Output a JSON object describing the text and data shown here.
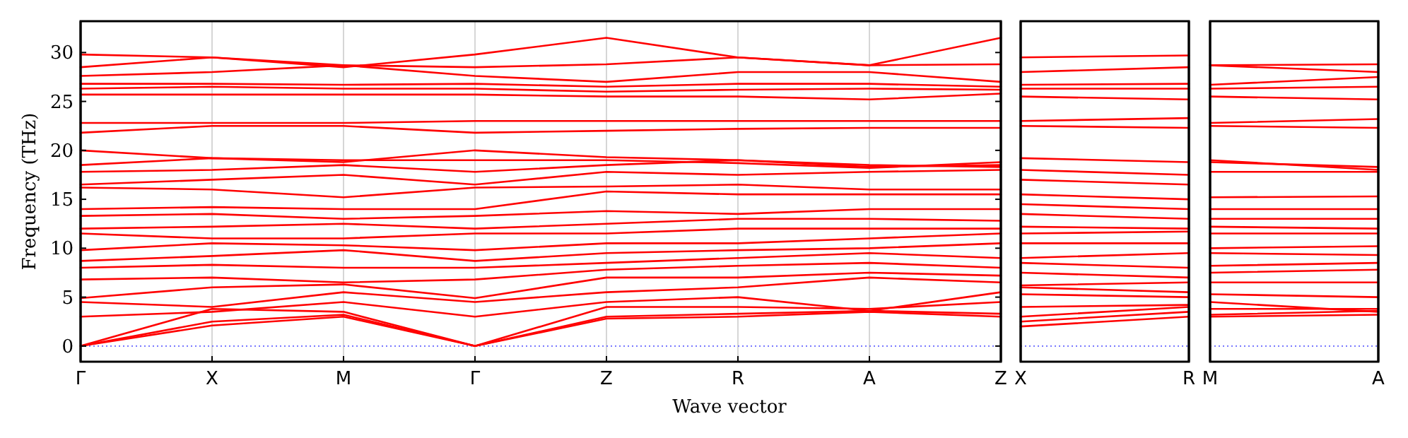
{
  "chart_data": [
    {
      "type": "line",
      "ylabel": "Frequency (THz)",
      "xlabel": "Wave vector",
      "categories": [
        "Γ",
        "X",
        "M",
        "Γ",
        "Z",
        "R",
        "A",
        "Z"
      ],
      "ylim": [
        -1.6,
        33.2
      ],
      "yticks": [
        0,
        5,
        10,
        15,
        20,
        25,
        30
      ],
      "grid": "x",
      "marker": "none",
      "line_style": "solid",
      "ref_lines": [
        {
          "axis": "y",
          "value": 0,
          "color": "#6666ff",
          "line_style": "dotted"
        }
      ],
      "series": [
        {
          "color": "#ff0000",
          "values": [
            0,
            2.1,
            3.0,
            0,
            2.8,
            3.0,
            3.5,
            3.0
          ]
        },
        {
          "color": "#ff0000",
          "values": [
            0,
            2.5,
            3.2,
            0,
            3.0,
            3.3,
            3.6,
            3.3
          ]
        },
        {
          "color": "#ff0000",
          "values": [
            0,
            3.8,
            3.5,
            0,
            4.0,
            4.0,
            3.8,
            4.5
          ]
        },
        {
          "color": "#ff0000",
          "values": [
            3.0,
            3.5,
            4.5,
            3.0,
            4.5,
            5.0,
            3.6,
            5.5
          ]
        },
        {
          "color": "#ff0000",
          "values": [
            4.5,
            4.0,
            5.5,
            4.5,
            5.5,
            6.0,
            7.0,
            6.5
          ]
        },
        {
          "color": "#ff0000",
          "values": [
            4.9,
            6.0,
            6.3,
            4.9,
            7.0,
            7.0,
            7.5,
            7.2
          ]
        },
        {
          "color": "#ff0000",
          "values": [
            6.8,
            7.0,
            6.5,
            6.8,
            7.8,
            8.2,
            8.5,
            8.0
          ]
        },
        {
          "color": "#ff0000",
          "values": [
            8.0,
            8.3,
            8.0,
            8.0,
            8.5,
            9.0,
            9.5,
            9.0
          ]
        },
        {
          "color": "#ff0000",
          "values": [
            8.7,
            9.2,
            9.8,
            8.7,
            9.5,
            9.8,
            10.0,
            10.5
          ]
        },
        {
          "color": "#ff0000",
          "values": [
            9.8,
            10.5,
            10.3,
            9.8,
            10.5,
            10.5,
            11.0,
            11.5
          ]
        },
        {
          "color": "#ff0000",
          "values": [
            11.5,
            11.0,
            11.0,
            11.5,
            11.5,
            12.0,
            12.0,
            12.0
          ]
        },
        {
          "color": "#ff0000",
          "values": [
            12.0,
            12.2,
            12.5,
            12.0,
            12.5,
            13.0,
            13.0,
            12.8
          ]
        },
        {
          "color": "#ff0000",
          "values": [
            13.3,
            13.5,
            13.0,
            13.3,
            13.8,
            13.5,
            14.0,
            14.0
          ]
        },
        {
          "color": "#ff0000",
          "values": [
            14.0,
            14.2,
            14.0,
            14.0,
            15.8,
            15.5,
            15.5,
            15.5
          ]
        },
        {
          "color": "#ff0000",
          "values": [
            16.2,
            16.0,
            15.2,
            16.2,
            16.3,
            16.5,
            16.0,
            16.0
          ]
        },
        {
          "color": "#ff0000",
          "values": [
            16.5,
            17.0,
            17.5,
            16.5,
            17.8,
            17.5,
            17.8,
            18.0
          ]
        },
        {
          "color": "#ff0000",
          "values": [
            17.8,
            18.0,
            18.5,
            17.8,
            18.5,
            19.0,
            18.3,
            18.5
          ]
        },
        {
          "color": "#ff0000",
          "values": [
            18.5,
            19.2,
            19.0,
            19.0,
            19.0,
            18.7,
            18.2,
            18.8
          ]
        },
        {
          "color": "#ff0000",
          "values": [
            20.0,
            19.2,
            18.8,
            20.0,
            19.3,
            19.0,
            18.5,
            18.3
          ]
        },
        {
          "color": "#ff0000",
          "values": [
            21.8,
            22.5,
            22.5,
            21.8,
            22.0,
            22.2,
            22.3,
            22.3
          ]
        },
        {
          "color": "#ff0000",
          "values": [
            22.8,
            22.8,
            22.8,
            23.0,
            23.0,
            23.0,
            23.0,
            23.0
          ]
        },
        {
          "color": "#ff0000",
          "values": [
            25.7,
            25.7,
            25.7,
            25.7,
            25.5,
            25.5,
            25.2,
            25.8
          ]
        },
        {
          "color": "#ff0000",
          "values": [
            26.3,
            26.5,
            26.3,
            26.3,
            26.0,
            26.2,
            26.3,
            26.2
          ]
        },
        {
          "color": "#ff0000",
          "values": [
            26.8,
            26.8,
            26.7,
            26.8,
            26.5,
            26.8,
            26.8,
            26.5
          ]
        },
        {
          "color": "#ff0000",
          "values": [
            27.6,
            28.0,
            28.7,
            27.6,
            27.0,
            28.0,
            28.0,
            27.0
          ]
        },
        {
          "color": "#ff0000",
          "values": [
            28.5,
            29.5,
            28.7,
            28.5,
            28.8,
            29.5,
            28.7,
            28.8
          ]
        },
        {
          "color": "#ff0000",
          "values": [
            29.8,
            29.5,
            28.5,
            29.8,
            31.5,
            29.5,
            28.7,
            31.5
          ]
        }
      ]
    },
    {
      "type": "line",
      "categories": [
        "X",
        "R"
      ],
      "ylim": [
        -1.6,
        33.2
      ],
      "tick_labels": "x",
      "marker": "none",
      "line_style": "solid",
      "ref_lines": [
        {
          "axis": "y",
          "value": 0,
          "color": "#6666ff",
          "line_style": "dotted"
        }
      ],
      "series": [
        {
          "color": "#ff0000",
          "values": [
            2.0,
            3.0
          ]
        },
        {
          "color": "#ff0000",
          "values": [
            2.5,
            3.5
          ]
        },
        {
          "color": "#ff0000",
          "values": [
            3.0,
            4.0
          ]
        },
        {
          "color": "#ff0000",
          "values": [
            4.0,
            4.2
          ]
        },
        {
          "color": "#ff0000",
          "values": [
            5.3,
            5.0
          ]
        },
        {
          "color": "#ff0000",
          "values": [
            6.0,
            5.5
          ]
        },
        {
          "color": "#ff0000",
          "values": [
            6.2,
            6.5
          ]
        },
        {
          "color": "#ff0000",
          "values": [
            7.5,
            7.0
          ]
        },
        {
          "color": "#ff0000",
          "values": [
            8.5,
            8.0
          ]
        },
        {
          "color": "#ff0000",
          "values": [
            9.0,
            9.5
          ]
        },
        {
          "color": "#ff0000",
          "values": [
            10.5,
            10.5
          ]
        },
        {
          "color": "#ff0000",
          "values": [
            11.5,
            11.7
          ]
        },
        {
          "color": "#ff0000",
          "values": [
            12.2,
            12.0
          ]
        },
        {
          "color": "#ff0000",
          "values": [
            13.5,
            13.0
          ]
        },
        {
          "color": "#ff0000",
          "values": [
            14.5,
            14.0
          ]
        },
        {
          "color": "#ff0000",
          "values": [
            15.5,
            15.0
          ]
        },
        {
          "color": "#ff0000",
          "values": [
            17.0,
            16.5
          ]
        },
        {
          "color": "#ff0000",
          "values": [
            18.0,
            17.5
          ]
        },
        {
          "color": "#ff0000",
          "values": [
            19.2,
            18.8
          ]
        },
        {
          "color": "#ff0000",
          "values": [
            22.5,
            22.3
          ]
        },
        {
          "color": "#ff0000",
          "values": [
            23.0,
            23.3
          ]
        },
        {
          "color": "#ff0000",
          "values": [
            25.5,
            25.2
          ]
        },
        {
          "color": "#ff0000",
          "values": [
            26.3,
            26.3
          ]
        },
        {
          "color": "#ff0000",
          "values": [
            26.7,
            26.8
          ]
        },
        {
          "color": "#ff0000",
          "values": [
            28.0,
            28.5
          ]
        },
        {
          "color": "#ff0000",
          "values": [
            29.5,
            29.7
          ]
        }
      ]
    },
    {
      "type": "line",
      "categories": [
        "M",
        "A"
      ],
      "ylim": [
        -1.6,
        33.2
      ],
      "tick_labels": "x",
      "marker": "none",
      "line_style": "solid",
      "ref_lines": [
        {
          "axis": "y",
          "value": 0,
          "color": "#6666ff",
          "line_style": "dotted"
        }
      ],
      "series": [
        {
          "color": "#ff0000",
          "values": [
            3.0,
            3.2
          ]
        },
        {
          "color": "#ff0000",
          "values": [
            3.2,
            3.6
          ]
        },
        {
          "color": "#ff0000",
          "values": [
            3.8,
            3.8
          ]
        },
        {
          "color": "#ff0000",
          "values": [
            4.5,
            3.5
          ]
        },
        {
          "color": "#ff0000",
          "values": [
            5.3,
            5.0
          ]
        },
        {
          "color": "#ff0000",
          "values": [
            6.5,
            6.5
          ]
        },
        {
          "color": "#ff0000",
          "values": [
            7.5,
            7.8
          ]
        },
        {
          "color": "#ff0000",
          "values": [
            8.2,
            8.5
          ]
        },
        {
          "color": "#ff0000",
          "values": [
            9.5,
            9.3
          ]
        },
        {
          "color": "#ff0000",
          "values": [
            10.0,
            10.2
          ]
        },
        {
          "color": "#ff0000",
          "values": [
            11.5,
            11.5
          ]
        },
        {
          "color": "#ff0000",
          "values": [
            12.2,
            12.0
          ]
        },
        {
          "color": "#ff0000",
          "values": [
            13.0,
            13.0
          ]
        },
        {
          "color": "#ff0000",
          "values": [
            14.0,
            14.0
          ]
        },
        {
          "color": "#ff0000",
          "values": [
            15.2,
            15.3
          ]
        },
        {
          "color": "#ff0000",
          "values": [
            17.8,
            17.8
          ]
        },
        {
          "color": "#ff0000",
          "values": [
            18.8,
            18.3
          ]
        },
        {
          "color": "#ff0000",
          "values": [
            19.0,
            18.0
          ]
        },
        {
          "color": "#ff0000",
          "values": [
            22.5,
            22.3
          ]
        },
        {
          "color": "#ff0000",
          "values": [
            22.8,
            23.2
          ]
        },
        {
          "color": "#ff0000",
          "values": [
            25.5,
            25.2
          ]
        },
        {
          "color": "#ff0000",
          "values": [
            26.3,
            26.5
          ]
        },
        {
          "color": "#ff0000",
          "values": [
            26.7,
            27.5
          ]
        },
        {
          "color": "#ff0000",
          "values": [
            28.7,
            28.0
          ]
        },
        {
          "color": "#ff0000",
          "values": [
            28.7,
            28.8
          ]
        }
      ]
    }
  ]
}
